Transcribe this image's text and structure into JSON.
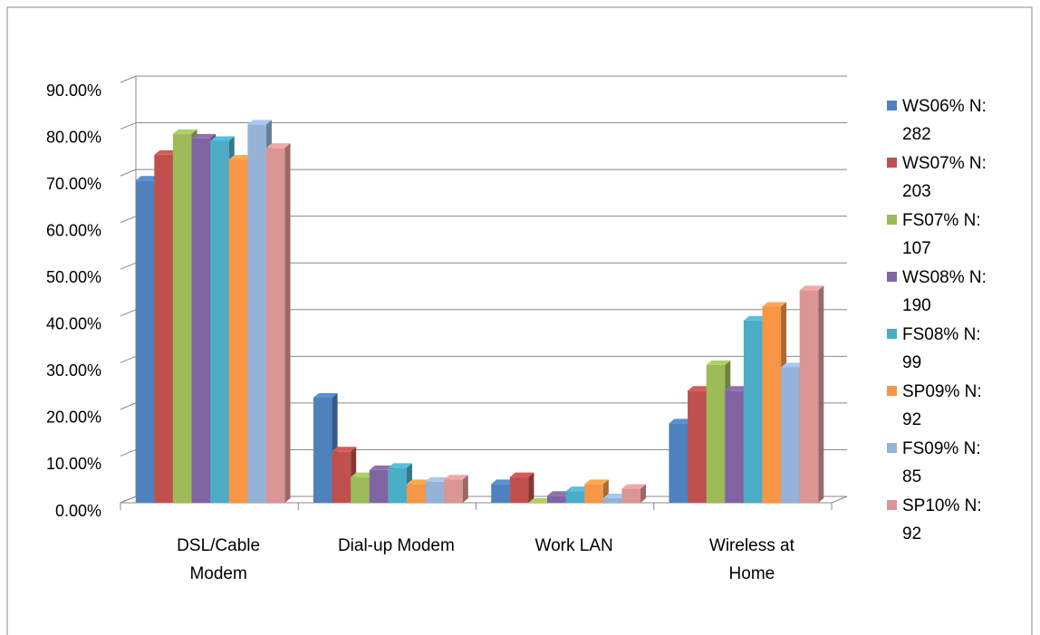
{
  "chart_data": {
    "type": "bar3d",
    "categories": [
      "DSL/Cable Modem",
      "Dial-up Modem",
      "Work LAN",
      "Wireless at Home"
    ],
    "series": [
      {
        "name": "WS06% N: 282",
        "color": "#4F81BD",
        "values": [
          69,
          22.5,
          4,
          17
        ]
      },
      {
        "name": "WS07% N: 203",
        "color": "#C0504D",
        "values": [
          74.5,
          11,
          5.5,
          24
        ]
      },
      {
        "name": "FS07% N: 107",
        "color": "#9BBB59",
        "values": [
          79,
          5.5,
          0,
          29.5
        ]
      },
      {
        "name": "WS08% N: 190",
        "color": "#8064A2",
        "values": [
          78,
          7,
          1.5,
          24
        ]
      },
      {
        "name": "FS08% N: 99",
        "color": "#4BACC6",
        "values": [
          77.5,
          7.5,
          2.5,
          39
        ]
      },
      {
        "name": "SP09% N: 92",
        "color": "#F79646",
        "values": [
          73.5,
          4,
          4,
          42
        ]
      },
      {
        "name": "FS09% N: 85",
        "color": "#95B3D7",
        "values": [
          81,
          4.5,
          1,
          29
        ]
      },
      {
        "name": "SP10% N: 92",
        "color": "#D99694",
        "values": [
          76,
          5,
          3,
          45.5
        ]
      }
    ],
    "ylim": [
      0,
      90
    ],
    "yticks": [
      {
        "value": 0,
        "label": "0.00%"
      },
      {
        "value": 10,
        "label": "10.00%"
      },
      {
        "value": 20,
        "label": "20.00%"
      },
      {
        "value": 30,
        "label": "30.00%"
      },
      {
        "value": 40,
        "label": "40.00%"
      },
      {
        "value": 50,
        "label": "50.00%"
      },
      {
        "value": 60,
        "label": "60.00%"
      },
      {
        "value": 70,
        "label": "70.00%"
      },
      {
        "value": 80,
        "label": "80.00%"
      },
      {
        "value": 90,
        "label": "90.00%"
      }
    ],
    "grid": true,
    "legend": "right"
  }
}
